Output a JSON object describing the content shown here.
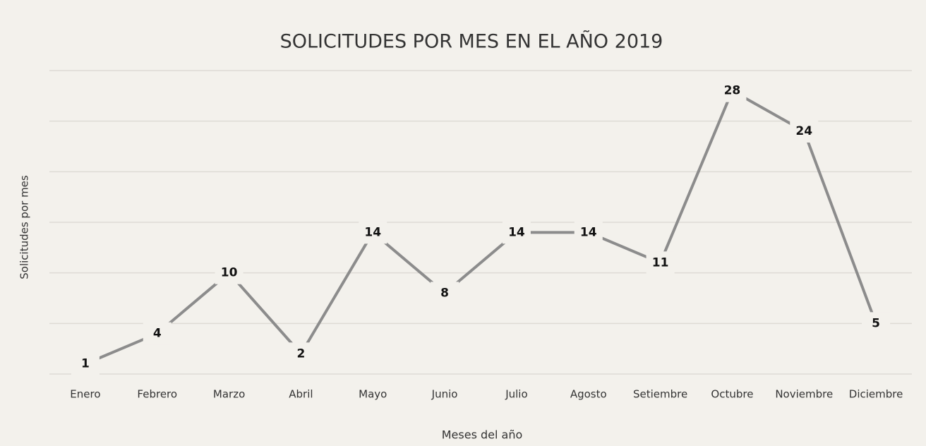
{
  "chart_data": {
    "type": "line",
    "title": "SOLICITUDES POR MES EN EL AÑO 2019",
    "xlabel": "Meses del año",
    "ylabel": "Solicitudes por mes",
    "categories": [
      "Enero",
      "Febrero",
      "Marzo",
      "Abril",
      "Mayo",
      "Junio",
      "Julio",
      "Agosto",
      "Setiembre",
      "Octubre",
      "Noviembre",
      "Diciembre"
    ],
    "values": [
      1,
      4,
      10,
      2,
      14,
      8,
      14,
      14,
      11,
      28,
      24,
      5
    ],
    "color": "#8c8c8c",
    "ylim": [
      0,
      30
    ],
    "yticks": [
      0,
      5,
      10,
      15,
      20,
      25,
      30
    ],
    "ytick_labels": false,
    "grid": true,
    "data_labels": true
  }
}
